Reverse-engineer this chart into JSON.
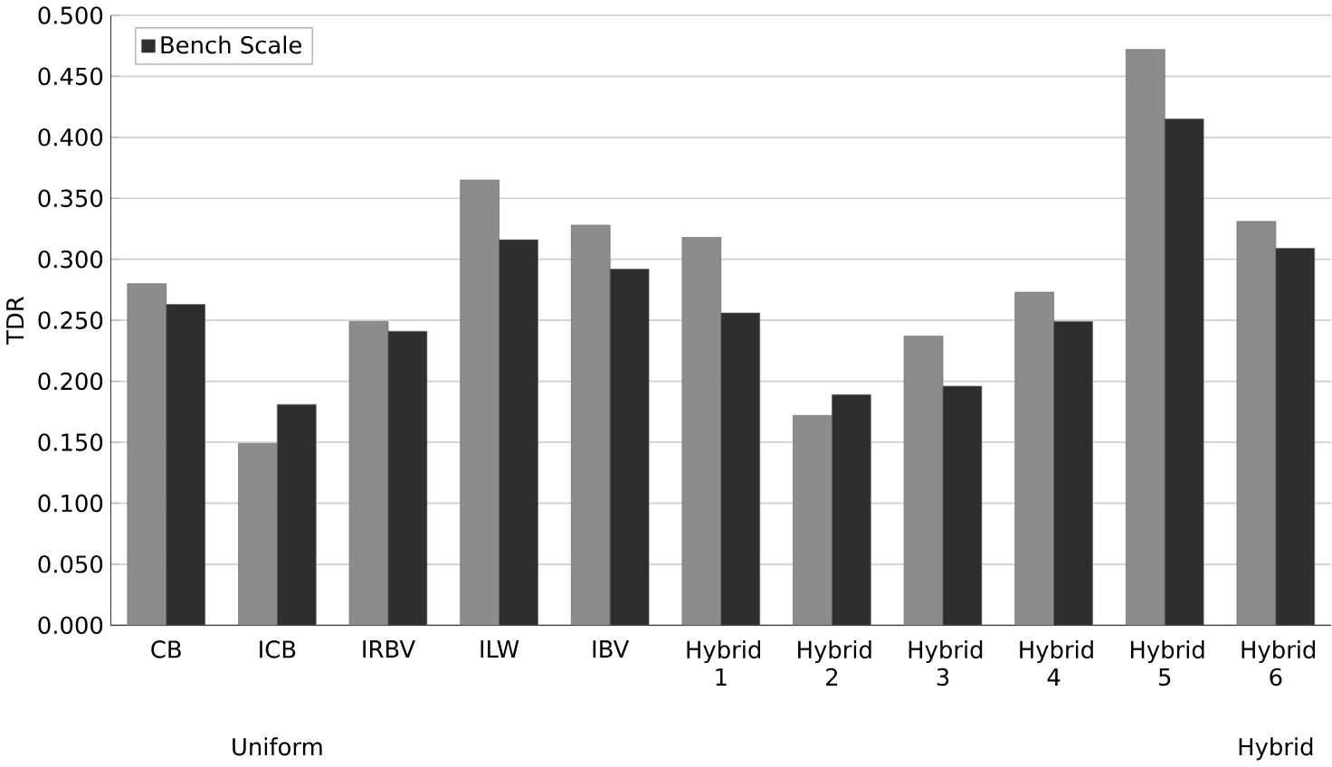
{
  "chart_data": {
    "type": "bar",
    "ylabel": "TDR",
    "categories": [
      "CB",
      "ICB",
      "IRBV",
      "ILW",
      "IBV",
      "Hybrid 1",
      "Hybrid 2",
      "Hybrid 3",
      "Hybrid 4",
      "Hybrid 5",
      "Hybrid 6"
    ],
    "series": [
      {
        "color": "#8c8c8c",
        "values": [
          0.28,
          0.149,
          0.249,
          0.365,
          0.328,
          0.318,
          0.172,
          0.237,
          0.273,
          0.472,
          0.331
        ]
      },
      {
        "name": "Bench Scale",
        "color": "#2e2e2e",
        "values": [
          0.263,
          0.181,
          0.241,
          0.316,
          0.292,
          0.256,
          0.189,
          0.196,
          0.249,
          0.415,
          0.309
        ]
      }
    ],
    "ylim": [
      0,
      0.5
    ],
    "yticks": [
      {
        "value": 0,
        "label": "0.000"
      },
      {
        "value": 0.05,
        "label": "0.050"
      },
      {
        "value": 0.1,
        "label": "0.100"
      },
      {
        "value": 0.15,
        "label": "0.150"
      },
      {
        "value": 0.2,
        "label": "0.200"
      },
      {
        "value": 0.25,
        "label": "0.250"
      },
      {
        "value": 0.3,
        "label": "0.300"
      },
      {
        "value": 0.35,
        "label": "0.350"
      },
      {
        "value": 0.4,
        "label": "0.400"
      },
      {
        "value": 0.45,
        "label": "0.450"
      },
      {
        "value": 0.5,
        "label": "0.500"
      }
    ],
    "grid": "y",
    "legend": "top left",
    "annotations": [
      "Uniform",
      "Hybrid"
    ]
  }
}
